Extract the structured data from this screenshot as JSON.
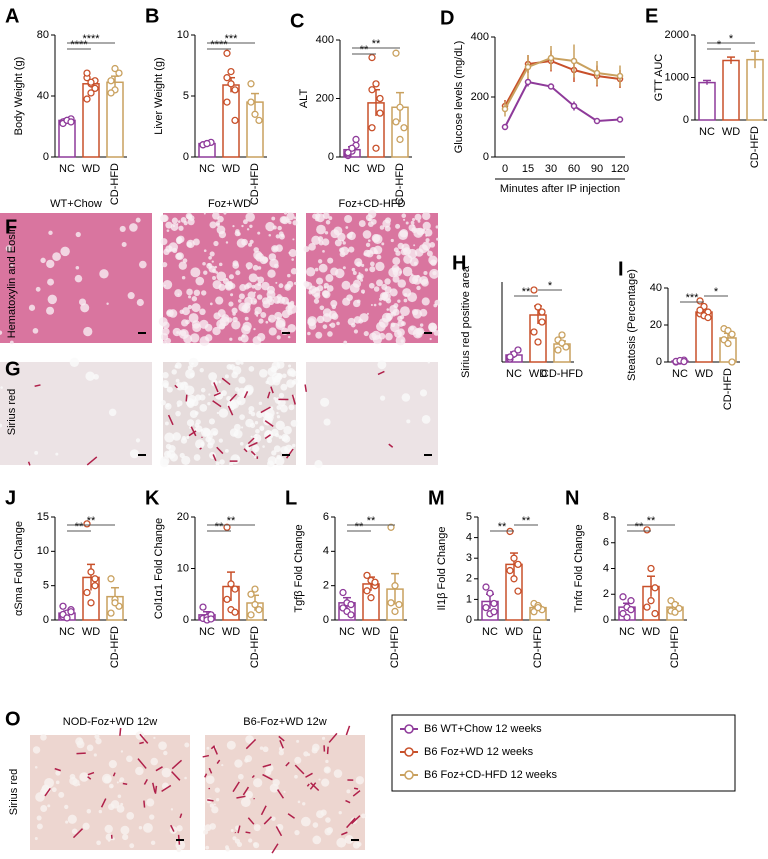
{
  "chart_data": [
    {
      "type": "bar",
      "label": "A",
      "ylabel": "Body Weight (g)",
      "categories": [
        "NC",
        "WD",
        "CD-HFD"
      ],
      "colors": [
        "#8e3a9a",
        "#c8502a",
        "#c9a15f"
      ],
      "values": [
        24,
        48,
        49
      ],
      "errors": [
        1,
        2.5,
        4
      ],
      "points": [
        [
          23,
          24,
          25,
          22,
          24,
          23
        ],
        [
          52,
          48,
          45,
          55,
          42,
          50,
          38,
          49
        ],
        [
          50,
          44,
          55,
          42,
          58
        ]
      ],
      "ylim": [
        0,
        80
      ],
      "yticks": [
        0,
        40,
        80
      ],
      "annotations": [
        {
          "text": "****",
          "from": 0,
          "to": 1
        },
        {
          "text": "****",
          "from": 0,
          "to": 2
        }
      ]
    },
    {
      "type": "bar",
      "label": "B",
      "ylabel": "Liver Weight (g)",
      "categories": [
        "NC",
        "WD",
        "CD-HFD"
      ],
      "colors": [
        "#8e3a9a",
        "#c8502a",
        "#c9a15f"
      ],
      "values": [
        1.1,
        5.9,
        4.5
      ],
      "errors": [
        0.1,
        0.6,
        0.7
      ],
      "points": [
        [
          1.0,
          1.1,
          1.2,
          1.0,
          1.1
        ],
        [
          6.5,
          7,
          5.5,
          4.5,
          6,
          3,
          8.5
        ],
        [
          4.5,
          3.5,
          3,
          6
        ]
      ],
      "ylim": [
        0,
        10
      ],
      "yticks": [
        0,
        5,
        10
      ],
      "annotations": [
        {
          "text": "****",
          "from": 0,
          "to": 1
        },
        {
          "text": "***",
          "from": 0,
          "to": 2
        }
      ]
    },
    {
      "type": "bar",
      "label": "C",
      "ylabel": "ALT",
      "categories": [
        "NC",
        "WD",
        "CD-HFD"
      ],
      "colors": [
        "#8e3a9a",
        "#c8502a",
        "#c9a15f"
      ],
      "values": [
        25,
        185,
        170
      ],
      "errors": [
        10,
        45,
        50
      ],
      "points": [
        [
          5,
          20,
          40,
          10,
          30,
          60,
          15
        ],
        [
          340,
          250,
          150,
          100,
          30,
          200,
          230
        ],
        [
          355,
          170,
          100,
          120,
          60
        ]
      ],
      "ylim": [
        0,
        400
      ],
      "yticks": [
        0,
        200,
        400
      ],
      "annotations": [
        {
          "text": "**",
          "from": 0,
          "to": 1
        },
        {
          "text": "**",
          "from": 0,
          "to": 2
        }
      ]
    },
    {
      "type": "line",
      "label": "D",
      "ylabel": "Glucose levels (mg/dL)",
      "xlabel": "Minutes after IP injection",
      "categories": [
        "0",
        "15",
        "30",
        "60",
        "90",
        "120"
      ],
      "ylim": [
        0,
        400
      ],
      "yticks": [
        0,
        200,
        400
      ],
      "series": [
        {
          "name": "B6 WT+Chow 12 weeks",
          "color": "#8e3a9a",
          "values": [
            100,
            250,
            235,
            170,
            120,
            125
          ],
          "errors": [
            8,
            15,
            10,
            15,
            8,
            8
          ]
        },
        {
          "name": "B6 Foz+WD 12 weeks",
          "color": "#c8502a",
          "values": [
            170,
            310,
            320,
            290,
            270,
            260
          ],
          "errors": [
            20,
            30,
            35,
            40,
            35,
            30
          ]
        },
        {
          "name": "B6 Foz+CD-HFD 12 weeks",
          "color": "#c9a15f",
          "values": [
            160,
            300,
            330,
            320,
            280,
            270
          ],
          "errors": [
            25,
            40,
            40,
            55,
            40,
            35
          ]
        }
      ]
    },
    {
      "type": "bar",
      "label": "E",
      "ylabel": "GTT AUC",
      "categories": [
        "NC",
        "WD",
        "CD-HFD"
      ],
      "colors": [
        "#8e3a9a",
        "#c8502a",
        "#c9a15f"
      ],
      "values": [
        880,
        1400,
        1420
      ],
      "errors": [
        50,
        80,
        200
      ],
      "ylim": [
        0,
        2000
      ],
      "yticks": [
        0,
        1000,
        2000
      ],
      "annotations": [
        {
          "text": "*",
          "from": 0,
          "to": 1
        },
        {
          "text": "*",
          "from": 0,
          "to": 2
        }
      ]
    },
    {
      "type": "bar",
      "label": "H",
      "ylabel": "Sirius red positive area",
      "categories": [
        "NC",
        "WD",
        "CD-HFD"
      ],
      "colors": [
        "#8e3a9a",
        "#c8502a",
        "#c9a15f"
      ],
      "values": [
        0.7,
        4.7,
        1.8
      ],
      "errors": [
        0.3,
        0.9,
        0.3
      ],
      "points": [
        [
          0.3,
          0.8,
          1.2,
          0.5
        ],
        [
          7.2,
          5.5,
          4,
          3,
          2,
          5
        ],
        [
          2.2,
          1.9,
          1.5,
          1.2,
          2.7
        ]
      ],
      "ylim": [
        0,
        8
      ],
      "annotations": [
        {
          "text": "**",
          "from": 0,
          "to": 1
        },
        {
          "text": "*",
          "from": 1,
          "to": 2
        }
      ]
    },
    {
      "type": "bar",
      "label": "I",
      "ylabel": "Steatosis (Percentage)",
      "categories": [
        "NC",
        "WD",
        "CD-HFD"
      ],
      "colors": [
        "#8e3a9a",
        "#c8502a",
        "#c9a15f"
      ],
      "values": [
        0.5,
        27,
        13
      ],
      "errors": [
        0.3,
        1.5,
        2.5
      ],
      "points": [
        [
          0,
          0.5,
          1,
          0.3,
          0.8,
          0.2
        ],
        [
          33,
          30,
          27,
          26,
          25,
          24,
          28
        ],
        [
          18,
          17,
          15,
          12,
          10,
          0
        ]
      ],
      "ylim": [
        0,
        40
      ],
      "yticks": [
        0,
        20,
        40
      ],
      "annotations": [
        {
          "text": "***",
          "from": 0,
          "to": 1
        },
        {
          "text": "*",
          "from": 1,
          "to": 2
        }
      ]
    },
    {
      "type": "bar",
      "label": "J",
      "ylabel": "αSma Fold Change",
      "categories": [
        "NC",
        "WD",
        "CD-HFD"
      ],
      "colors": [
        "#8e3a9a",
        "#c8502a",
        "#c9a15f"
      ],
      "values": [
        1,
        6.2,
        3.4
      ],
      "errors": [
        0.3,
        1.9,
        1.3
      ],
      "points": [
        [
          0.5,
          1,
          1.5,
          0.8,
          0.3,
          1.2,
          2
        ],
        [
          14,
          7,
          6,
          4,
          2.5,
          5
        ],
        [
          6,
          3,
          2,
          1,
          2.5
        ]
      ],
      "ylim": [
        0,
        15
      ],
      "yticks": [
        0,
        5,
        10,
        15
      ],
      "annotations": [
        {
          "text": "**",
          "from": 0,
          "to": 1
        },
        {
          "text": "**",
          "from": 0,
          "to": 2
        }
      ]
    },
    {
      "type": "bar",
      "label": "K",
      "ylabel": "Col1α1 Fold Change",
      "categories": [
        "NC",
        "WD",
        "CD-HFD"
      ],
      "colors": [
        "#8e3a9a",
        "#c8502a",
        "#c9a15f"
      ],
      "values": [
        1,
        6.5,
        3.3
      ],
      "errors": [
        0.6,
        2.8,
        1.5
      ],
      "points": [
        [
          0.3,
          0.5,
          1,
          2.5,
          0,
          0.2
        ],
        [
          18,
          7,
          6,
          4,
          2,
          1.5
        ],
        [
          5,
          3,
          2,
          1,
          6
        ]
      ],
      "ylim": [
        0,
        20
      ],
      "yticks": [
        0,
        10,
        20
      ],
      "annotations": [
        {
          "text": "**",
          "from": 0,
          "to": 1
        },
        {
          "text": "**",
          "from": 0,
          "to": 2
        }
      ]
    },
    {
      "type": "bar",
      "label": "L",
      "ylabel": "Tgfβ Fold Change",
      "categories": [
        "NC",
        "WD",
        "CD-HFD"
      ],
      "colors": [
        "#8e3a9a",
        "#c8502a",
        "#c9a15f"
      ],
      "values": [
        1,
        2.1,
        1.8
      ],
      "errors": [
        0.3,
        0.4,
        0.9
      ],
      "points": [
        [
          1.6,
          1,
          0.9,
          0.7,
          0.5,
          0.3
        ],
        [
          2.6,
          2.3,
          2,
          1.7,
          1.3,
          2.2
        ],
        [
          5.4,
          2,
          0.9,
          1,
          0.5
        ]
      ],
      "ylim": [
        0,
        6
      ],
      "yticks": [
        0,
        2,
        4,
        6
      ],
      "annotations": [
        {
          "text": "**",
          "from": 0,
          "to": 1
        },
        {
          "text": "**",
          "from": 0,
          "to": 2
        }
      ]
    },
    {
      "type": "bar",
      "label": "M",
      "ylabel": "Il1β Fold Change",
      "categories": [
        "NC",
        "WD",
        "CD-HFD"
      ],
      "colors": [
        "#8e3a9a",
        "#c8502a",
        "#c9a15f"
      ],
      "values": [
        0.9,
        2.7,
        0.6
      ],
      "errors": [
        0.35,
        0.55,
        0.1
      ],
      "points": [
        [
          1.6,
          1.3,
          0.8,
          0.6,
          0.3,
          0.4
        ],
        [
          4.3,
          3,
          2.7,
          2.4,
          2,
          1.4
        ],
        [
          0.8,
          0.7,
          0.5,
          0.4,
          0.6
        ]
      ],
      "ylim": [
        0,
        5
      ],
      "yticks": [
        0,
        1,
        2,
        3,
        4,
        5
      ],
      "annotations": [
        {
          "text": "**",
          "from": 0,
          "to": 1
        },
        {
          "text": "**",
          "from": 1,
          "to": 2
        }
      ]
    },
    {
      "type": "bar",
      "label": "N",
      "ylabel": "Tnfα Fold Change",
      "categories": [
        "NC",
        "WD",
        "CD-HFD"
      ],
      "colors": [
        "#8e3a9a",
        "#c8502a",
        "#c9a15f"
      ],
      "values": [
        1,
        2.6,
        1
      ],
      "errors": [
        0.3,
        0.8,
        0.3
      ],
      "points": [
        [
          1.8,
          1,
          0.8,
          0.5,
          0.2,
          1.5
        ],
        [
          7,
          4,
          2.5,
          1,
          1.5,
          0.5
        ],
        [
          1.5,
          1.2,
          0.9,
          0.7,
          0.6
        ]
      ],
      "ylim": [
        0,
        8
      ],
      "yticks": [
        0,
        2,
        4,
        6,
        8
      ],
      "annotations": [
        {
          "text": "**",
          "from": 0,
          "to": 1
        },
        {
          "text": "**",
          "from": 0,
          "to": 2
        }
      ]
    }
  ],
  "histology": [
    {
      "label": "F",
      "row_label": "Hematoxylin and Eosin",
      "columns": [
        "WT+Chow",
        "Foz+WD",
        "Foz+CD-HFD"
      ]
    },
    {
      "label": "G",
      "row_label": "Sirius red"
    },
    {
      "label": "O",
      "row_label": "Sirius red",
      "columns": [
        "NOD-Foz+WD 12w",
        "B6-Foz+WD 12w"
      ]
    }
  ]
}
